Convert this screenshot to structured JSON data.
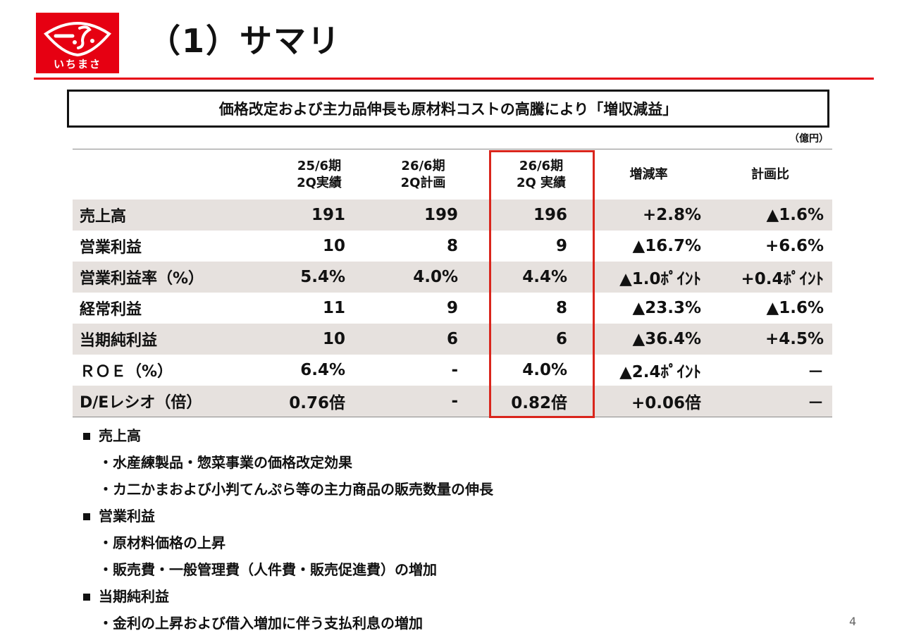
{
  "logo": {
    "text": "いちまさ",
    "brand_color": "#e60012"
  },
  "page_title": "（1）サマリ",
  "headline": "価格改定および主力品伸長も原材料コストの高騰により「増収減益」",
  "unit_label": "（億円）",
  "table": {
    "highlight_color": "#d9251c",
    "row_shade_color": "#e6e1de",
    "headers": [
      {
        "line1": "",
        "line2": ""
      },
      {
        "line1": "25/6期",
        "line2": "2Q実績"
      },
      {
        "line1": "26/6期",
        "line2": "2Q計画"
      },
      {
        "line1": "26/6期",
        "line2": "2Q 実績"
      },
      {
        "line1": "増減率",
        "line2": ""
      },
      {
        "line1": "計画比",
        "line2": ""
      }
    ],
    "rows": [
      {
        "label": "売上高",
        "values": [
          "191",
          "199",
          "196",
          "+2.8%",
          "▲1.6%"
        ]
      },
      {
        "label": "営業利益",
        "values": [
          "10",
          "8",
          "9",
          "▲16.7%",
          "+6.6%"
        ]
      },
      {
        "label": "営業利益率（%）",
        "values": [
          "5.4%",
          "4.0%",
          "4.4%",
          "▲1.0ﾎﾟｲﾝﾄ",
          "+0.4ﾎﾟｲﾝﾄ"
        ]
      },
      {
        "label": "経常利益",
        "values": [
          "11",
          "9",
          "8",
          "▲23.3%",
          "▲1.6%"
        ]
      },
      {
        "label": "当期純利益",
        "values": [
          "10",
          "6",
          "6",
          "▲36.4%",
          "+4.5%"
        ]
      },
      {
        "label": "ＲＯＥ（%）",
        "values": [
          "6.4%",
          "-",
          "4.0%",
          "▲2.4ﾎﾟｲﾝﾄ",
          "－"
        ]
      },
      {
        "label": "D/Eレシオ（倍）",
        "values": [
          "0.76倍",
          "-",
          "0.82倍",
          "+0.06倍",
          "－"
        ]
      }
    ]
  },
  "notes": [
    {
      "heading": "売上高",
      "items": [
        "・水産練製品・惣菜事業の価格改定効果",
        "・カ二かまおよび小判てんぷら等の主力商品の販売数量の伸長"
      ]
    },
    {
      "heading": "営業利益",
      "items": [
        "・原材料価格の上昇",
        "・販売費・一般管理費（人件費・販売促進費）の増加"
      ]
    },
    {
      "heading": "当期純利益",
      "items": [
        "・金利の上昇および借入増加に伴う支払利息の増加"
      ]
    }
  ],
  "page_number": "4"
}
